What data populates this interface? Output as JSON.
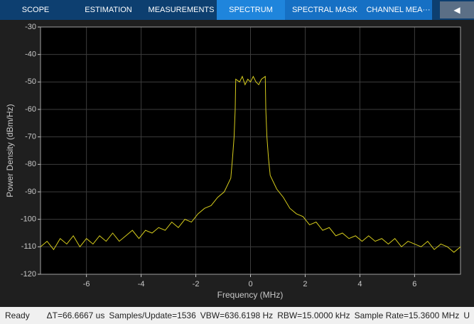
{
  "toolstrip": {
    "tabs": [
      "SCOPE",
      "ESTIMATION",
      "MEASUREMENTS",
      "SPECTRUM",
      "SPECTRAL MASK",
      "CHANNEL MEA···"
    ],
    "active_tab": 3
  },
  "status_bar": {
    "state": "Ready",
    "items": [
      "ΔT=66.6667 us",
      "Samples/Update=1536",
      "VBW=636.6198 Hz",
      "RBW=15.0000 kHz",
      "Sample Rate=15.3600 MHz",
      "U"
    ]
  },
  "chart_data": {
    "type": "line",
    "x_label": "Frequency (MHz)",
    "y_label": "Power Density (dBm/Hz)",
    "xlim": [
      -7.68,
      7.68
    ],
    "xticks": [
      -6,
      -4,
      -2,
      0,
      2,
      4,
      6
    ],
    "ylim": [
      -120,
      -30
    ],
    "yticks": [
      -120,
      -110,
      -100,
      -90,
      -80,
      -70,
      -60,
      -50,
      -40,
      -30
    ],
    "grid": true,
    "x": [
      -7.68,
      -7.44,
      -7.2,
      -6.96,
      -6.72,
      -6.48,
      -6.24,
      -6.0,
      -5.76,
      -5.52,
      -5.28,
      -5.04,
      -4.8,
      -4.56,
      -4.32,
      -4.08,
      -3.84,
      -3.6,
      -3.36,
      -3.12,
      -2.88,
      -2.64,
      -2.4,
      -2.16,
      -1.92,
      -1.68,
      -1.44,
      -1.2,
      -0.96,
      -0.72,
      -0.66,
      -0.6,
      -0.56,
      -0.54,
      -0.4,
      -0.3,
      -0.2,
      -0.1,
      0,
      0.1,
      0.2,
      0.3,
      0.4,
      0.54,
      0.56,
      0.6,
      0.66,
      0.72,
      0.96,
      1.2,
      1.44,
      1.68,
      1.92,
      2.16,
      2.4,
      2.64,
      2.88,
      3.12,
      3.36,
      3.6,
      3.84,
      4.08,
      4.32,
      4.56,
      4.8,
      5.04,
      5.28,
      5.52,
      5.76,
      6.0,
      6.24,
      6.48,
      6.72,
      6.96,
      7.2,
      7.44,
      7.68
    ],
    "series": [
      {
        "color": "#d6cc1c",
        "values": [
          -110,
          -108,
          -111,
          -107,
          -109,
          -106,
          -110,
          -107,
          -109,
          -106,
          -108,
          -105,
          -108,
          -106,
          -104,
          -107,
          -104,
          -105,
          -103,
          -104,
          -101,
          -103,
          -100,
          -101,
          -98,
          -96,
          -95,
          -92,
          -90,
          -85,
          -78,
          -70,
          -60,
          -49,
          -50,
          -48,
          -51,
          -49,
          -50,
          -48,
          -50,
          -51,
          -49,
          -48,
          -60,
          -70,
          -78,
          -84,
          -89,
          -92,
          -96,
          -98,
          -99,
          -102,
          -101,
          -104,
          -103,
          -106,
          -105,
          -107,
          -106,
          -108,
          -106,
          -108,
          -107,
          -109,
          -107,
          -110,
          -108,
          -109,
          -110,
          -108,
          -111,
          -109,
          -110,
          -112,
          -110
        ]
      }
    ]
  }
}
